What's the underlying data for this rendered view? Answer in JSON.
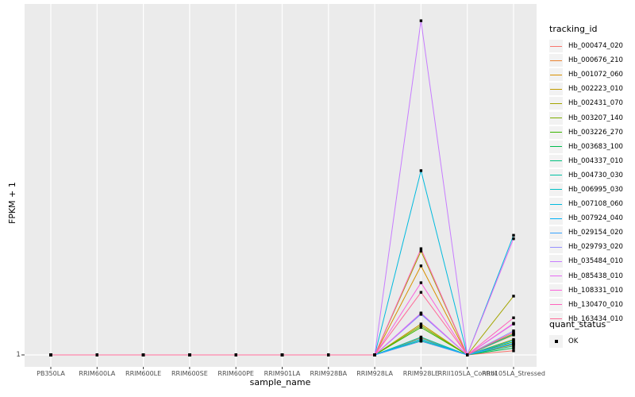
{
  "colors": {
    "page_bg": "#FFFFFF",
    "panel_bg": "#EBEBEB",
    "grid": "#FFFFFF",
    "tick_mark": "#333333",
    "tick_text": "#4D4D4D",
    "axis_title_text": "#000000",
    "point": "#000000",
    "legend_key_bg": "#F2F2F2"
  },
  "chart_data": {
    "type": "line",
    "title": "",
    "xlabel": "sample_name",
    "ylabel": "FPKM + 1",
    "legend_position": "right",
    "grid": "white vertical major gridlines per category and one horizontal gridline at y tick 1, on gray panel",
    "y_axis": {
      "tick_labels": [
        "1"
      ],
      "scale_note": "Axis shows FPKM + 1 with only the tick '1' labeled at the baseline; series values below are expressed as fraction of panel height above that baseline (0 = FPKM+1 = 1, 1 = panel top)."
    },
    "categories": [
      "PB350LA",
      "RRIM600LA",
      "RRIM600LE",
      "RRIM600SE",
      "RRIM600PE",
      "RRIM901LA",
      "RRIM928BA",
      "RRIM928LA",
      "RRIM928LE",
      "RRII105LA_Control",
      "RRII105LA_Stressed"
    ],
    "point_marker": "black square (quant_status OK)",
    "series": [
      {
        "name": "Hb_000474_020",
        "color": "#F8766D",
        "values": [
          0,
          0,
          0,
          0,
          0,
          0,
          0,
          0,
          0.04,
          0,
          0.012
        ]
      },
      {
        "name": "Hb_000676_210",
        "color": "#EA8331",
        "values": [
          0,
          0,
          0,
          0,
          0,
          0,
          0,
          0,
          0.05,
          0,
          0.03
        ]
      },
      {
        "name": "Hb_001072_060",
        "color": "#D89000",
        "values": [
          0,
          0,
          0,
          0,
          0,
          0,
          0,
          0,
          0.259,
          0,
          0.058
        ]
      },
      {
        "name": "Hb_002223_010",
        "color": "#C09B00",
        "values": [
          0,
          0,
          0,
          0,
          0,
          0,
          0,
          0,
          0.09,
          0,
          0.062
        ]
      },
      {
        "name": "Hb_002431_070",
        "color": "#A3A500",
        "values": [
          0,
          0,
          0,
          0,
          0,
          0,
          0,
          0,
          0.302,
          0,
          0.171
        ]
      },
      {
        "name": "Hb_003207_140",
        "color": "#7CAE00",
        "values": [
          0,
          0,
          0,
          0,
          0,
          0,
          0,
          0,
          0.085,
          0,
          0.045
        ]
      },
      {
        "name": "Hb_003226_270",
        "color": "#39B600",
        "values": [
          0,
          0,
          0,
          0,
          0,
          0,
          0,
          0,
          0.08,
          0,
          0.038
        ]
      },
      {
        "name": "Hb_003683_100",
        "color": "#00BB4E",
        "values": [
          0,
          0,
          0,
          0,
          0,
          0,
          0,
          0,
          0.046,
          0,
          0.02
        ]
      },
      {
        "name": "Hb_004337_010",
        "color": "#00BF7D",
        "values": [
          0,
          0,
          0,
          0,
          0,
          0,
          0,
          0,
          0.042,
          0,
          0.026
        ]
      },
      {
        "name": "Hb_004730_030",
        "color": "#00C1A3",
        "values": [
          0,
          0,
          0,
          0,
          0,
          0,
          0,
          0,
          0.052,
          0,
          0.032
        ]
      },
      {
        "name": "Hb_006995_030",
        "color": "#00BFC4",
        "values": [
          0,
          0,
          0,
          0,
          0,
          0,
          0,
          0,
          0.12,
          0,
          0.06
        ]
      },
      {
        "name": "Hb_007108_060",
        "color": "#00BADE",
        "values": [
          0,
          0,
          0,
          0,
          0,
          0,
          0,
          0,
          0.536,
          0,
          0.348
        ]
      },
      {
        "name": "Hb_007924_040",
        "color": "#00B0F6",
        "values": [
          0,
          0,
          0,
          0,
          0,
          0,
          0,
          0,
          0.046,
          0,
          0.042
        ]
      },
      {
        "name": "Hb_029154_020",
        "color": "#35A2FF",
        "values": [
          0,
          0,
          0,
          0,
          0,
          0,
          0,
          0,
          0.04,
          0,
          0.034
        ]
      },
      {
        "name": "Hb_029793_020",
        "color": "#9590FF",
        "values": [
          0,
          0,
          0,
          0,
          0,
          0,
          0,
          0,
          0.118,
          0,
          0.07
        ]
      },
      {
        "name": "Hb_035484_010",
        "color": "#C77CFF",
        "values": [
          0,
          0,
          0,
          0,
          0,
          0,
          0,
          0,
          0.972,
          0,
          0.09
        ]
      },
      {
        "name": "Hb_085438_010",
        "color": "#E76BF3",
        "values": [
          0,
          0,
          0,
          0,
          0,
          0,
          0,
          0,
          0.122,
          0,
          0.338
        ]
      },
      {
        "name": "Hb_108331_010",
        "color": "#FA62DB",
        "values": [
          0,
          0,
          0,
          0,
          0,
          0,
          0,
          0,
          0.21,
          0,
          0.092
        ]
      },
      {
        "name": "Hb_130470_010",
        "color": "#FF62BC",
        "values": [
          0,
          0,
          0,
          0,
          0,
          0,
          0,
          0,
          0.309,
          0,
          0.108
        ]
      },
      {
        "name": "Hb_163434_010",
        "color": "#FF6A98",
        "values": [
          0,
          0,
          0,
          0,
          0,
          0,
          0,
          0,
          0.182,
          0,
          0.066
        ]
      }
    ]
  },
  "legend": {
    "tracking_title": "tracking_id",
    "quant_title": "quant_status",
    "quant_items": [
      {
        "label": "OK",
        "marker": "black-square"
      }
    ]
  }
}
